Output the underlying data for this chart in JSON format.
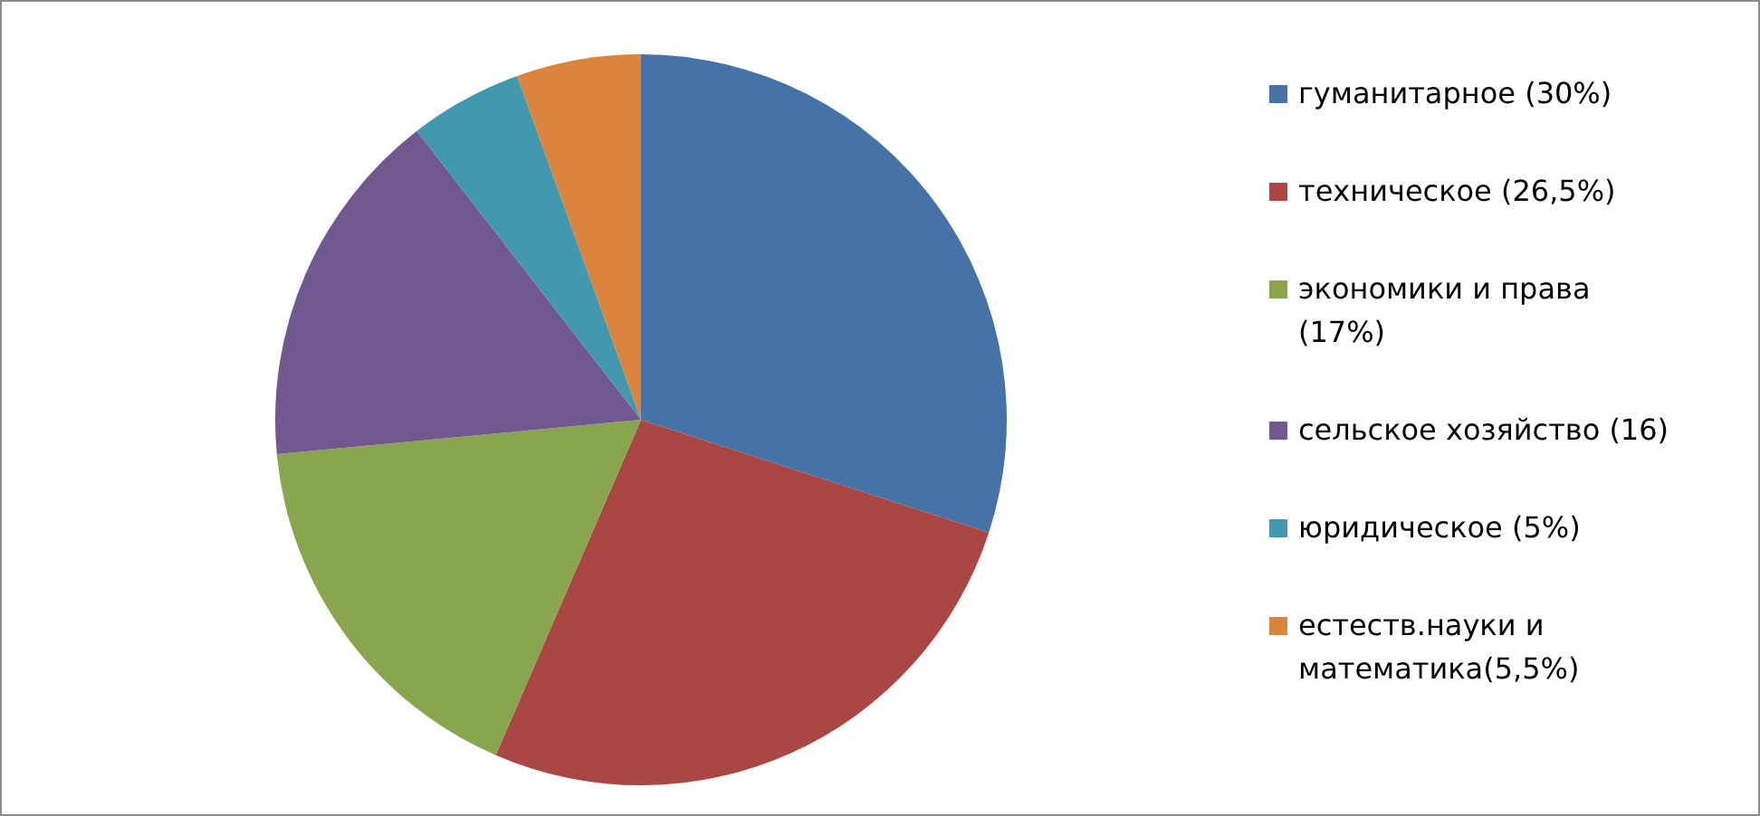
{
  "chart_data": {
    "type": "pie",
    "categories": [
      "гуманитарное (30%)",
      "техническое (26,5%)",
      "экономики и права (17%)",
      "сельское хозяйство (16)",
      "юридическое (5%)",
      "естеств.науки и математика(5,5%)"
    ],
    "values": [
      30,
      26.5,
      17,
      16,
      5,
      5.5
    ],
    "colors": [
      "#4572a7",
      "#aa4643",
      "#89a54e",
      "#71588f",
      "#4198af",
      "#db843d"
    ],
    "legend": "right"
  }
}
